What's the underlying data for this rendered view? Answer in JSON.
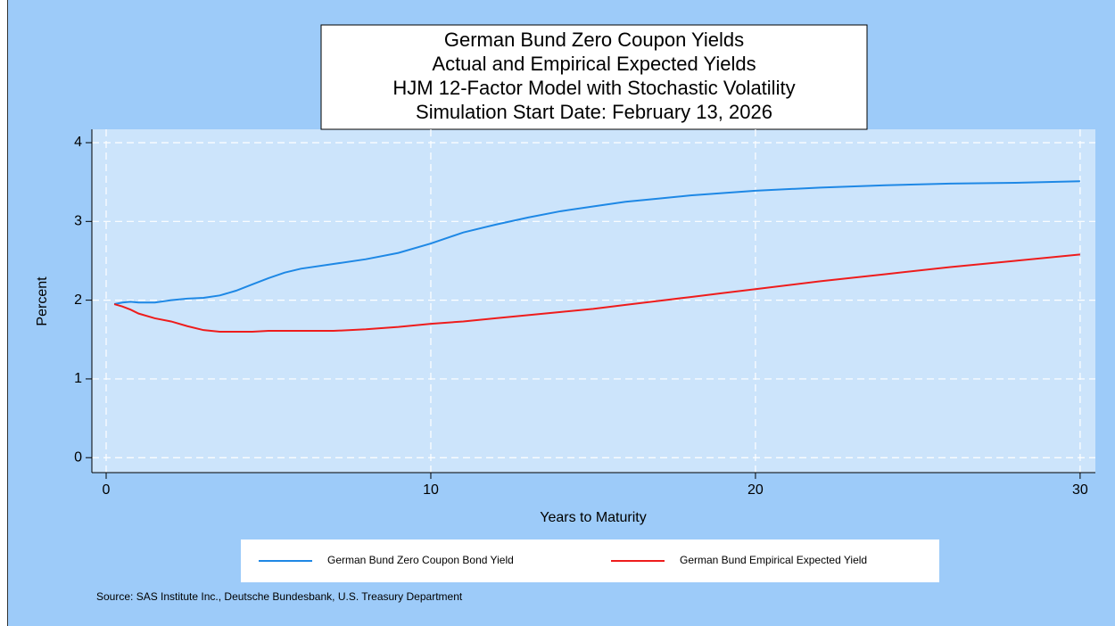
{
  "chart_data": {
    "type": "line",
    "title": [
      "German Bund Zero Coupon Yields",
      "Actual and Empirical Expected Yields",
      "HJM 12-Factor Model with Stochastic Volatility",
      "Simulation Start Date: February 13, 2026"
    ],
    "x_label": "Years to Maturity",
    "y_label": "Percent",
    "source": "Source: SAS Institute Inc., Deutsche Bundesbank, U.S. Treasury Department",
    "x": [
      0.25,
      0.5,
      0.75,
      1,
      1.5,
      2,
      2.5,
      3,
      3.5,
      4,
      4.5,
      5,
      5.5,
      6,
      7,
      8,
      9,
      10,
      11,
      12,
      13,
      14,
      15,
      16,
      17,
      18,
      19,
      20,
      22,
      24,
      26,
      28,
      30
    ],
    "series": [
      {
        "name": "German Bund Zero Coupon Bond Yield",
        "color": "#1e88e5",
        "values": [
          1.95,
          1.97,
          1.98,
          1.97,
          1.97,
          2.0,
          2.02,
          2.03,
          2.06,
          2.12,
          2.2,
          2.28,
          2.35,
          2.4,
          2.46,
          2.52,
          2.6,
          2.72,
          2.86,
          2.96,
          3.05,
          3.13,
          3.19,
          3.25,
          3.29,
          3.33,
          3.36,
          3.39,
          3.43,
          3.46,
          3.48,
          3.49,
          3.51
        ]
      },
      {
        "name": "German Bund Empirical Expected Yield",
        "color": "#ee1c1c",
        "values": [
          1.95,
          1.92,
          1.88,
          1.83,
          1.77,
          1.73,
          1.67,
          1.62,
          1.6,
          1.6,
          1.6,
          1.61,
          1.61,
          1.61,
          1.61,
          1.63,
          1.66,
          1.7,
          1.73,
          1.77,
          1.81,
          1.85,
          1.89,
          1.94,
          1.99,
          2.04,
          2.09,
          2.14,
          2.24,
          2.33,
          2.42,
          2.5,
          2.58
        ]
      }
    ],
    "xlim": [
      -0.44,
      30.47
    ],
    "xticks": [
      0,
      10,
      20,
      30
    ],
    "ylim": [
      -0.19,
      4.17
    ],
    "yticks": [
      0,
      1,
      2,
      3,
      4
    ],
    "grid": true,
    "legend": "bottom"
  }
}
